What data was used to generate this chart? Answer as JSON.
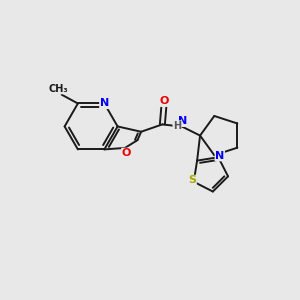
{
  "background_color": "#e8e8e8",
  "bond_color": "#1a1a1a",
  "atom_colors": {
    "N": "#0000ee",
    "O": "#ee0000",
    "S": "#aaaa00",
    "H": "#555555",
    "C": "#1a1a1a"
  }
}
